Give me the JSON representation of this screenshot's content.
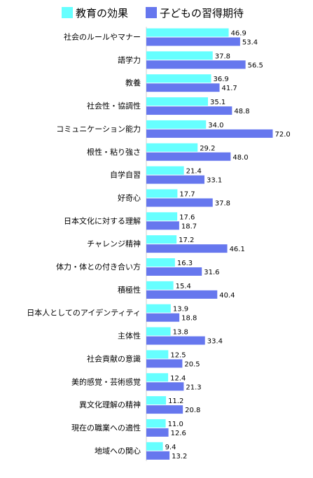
{
  "chart_data": {
    "type": "bar",
    "orientation": "horizontal",
    "legend_position": "top",
    "grid": false,
    "xlim": [
      0,
      80
    ],
    "categories": [
      "社会のルールやマナー",
      "語学力",
      "教養",
      "社会性・協調性",
      "コミュニケーション能力",
      "根性・粘り強さ",
      "自学自習",
      "好奇心",
      "日本文化に対する理解",
      "チャレンジ精神",
      "体力・体との付き合い方",
      "積極性",
      "日本人としてのアイデンティティ",
      "主体性",
      "社会貢献の意識",
      "美的感覚・芸術感覚",
      "異文化理解の精神",
      "現在の職業への適性",
      "地域への関心"
    ],
    "series": [
      {
        "name": "教育の効果",
        "color": "#66ffff",
        "values": [
          46.9,
          37.8,
          36.9,
          35.1,
          34.0,
          29.2,
          21.4,
          17.7,
          17.6,
          17.2,
          16.3,
          15.4,
          13.9,
          13.8,
          12.5,
          12.4,
          11.2,
          11.0,
          9.4
        ],
        "labels": [
          "46.9",
          "37.8",
          "36.9",
          "35.1",
          "34.0",
          "29.2",
          "21.4",
          "17.7",
          "17.6",
          "17.2",
          "16.3",
          "15.4",
          "13.9",
          "13.8",
          "12.5",
          "12.4",
          "11.2",
          "11.0",
          "9.4"
        ]
      },
      {
        "name": "子どもの習得期待",
        "color": "#6677ee",
        "values": [
          53.4,
          56.5,
          41.7,
          48.8,
          72.0,
          48.0,
          33.1,
          37.8,
          18.7,
          46.1,
          31.6,
          40.4,
          18.8,
          33.4,
          20.5,
          21.3,
          20.8,
          12.6,
          13.2
        ],
        "labels": [
          "53.4",
          "56.5",
          "41.7",
          "48.8",
          "72.0",
          "48.0",
          "33.1",
          "37.8",
          "18.7",
          "46.1",
          "31.6",
          "40.4",
          "18.8",
          "33.4",
          "20.5",
          "21.3",
          "20.8",
          "12.6",
          "13.2"
        ]
      }
    ]
  }
}
